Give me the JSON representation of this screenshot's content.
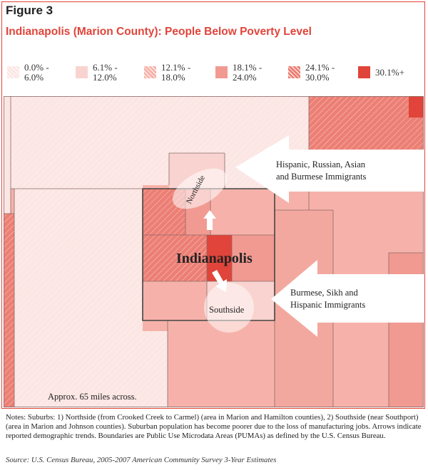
{
  "figure_label": "Figure 3",
  "title": "Indianapolis (Marion County): People Below Poverty Level",
  "legend": [
    {
      "label": "0.0% -\n6.0%",
      "fill": "#fbe6e3",
      "hatch": true
    },
    {
      "label": "6.1% -\n12.0%",
      "fill": "#f9d3cf",
      "hatch": false
    },
    {
      "label": "12.1% -\n18.0%",
      "fill": "#f6b2aa",
      "hatch": true
    },
    {
      "label": "18.1% -\n24.0%",
      "fill": "#f19a92",
      "hatch": false
    },
    {
      "label": "24.1% -\n30.0%",
      "fill": "#ec7f75",
      "hatch": true
    },
    {
      "label": "30.1%+",
      "fill": "#e0443a",
      "hatch": false
    }
  ],
  "map": {
    "city_label": "Indianapolis",
    "northside_label": "Northside",
    "southside_label": "Southside",
    "scale_note": "Approx. 65 miles across.",
    "callout_north": "Hispanic, Russian, Asian\nand Burmese Immigrants",
    "callout_south": "Burmese, Sikh and\nHispanic Immigrants"
  },
  "notes": "Notes: Suburbs: 1) Northside (from Crooked Creek to Carmel) (area in Marion and Hamilton counties), 2) Southside (near Southport) (area in Marion and Johnson counties). Suburban population has become poorer due to the loss of manufacturing jobs. Arrows indicate reported demographic trends. Boundaries are Public Use Microdata Areas (PUMAs) as defined by the U.S. Census Bureau.",
  "source": "Source: U.S. Census Bureau, 2005-2007 American Community Survey 3-Year Estimates"
}
